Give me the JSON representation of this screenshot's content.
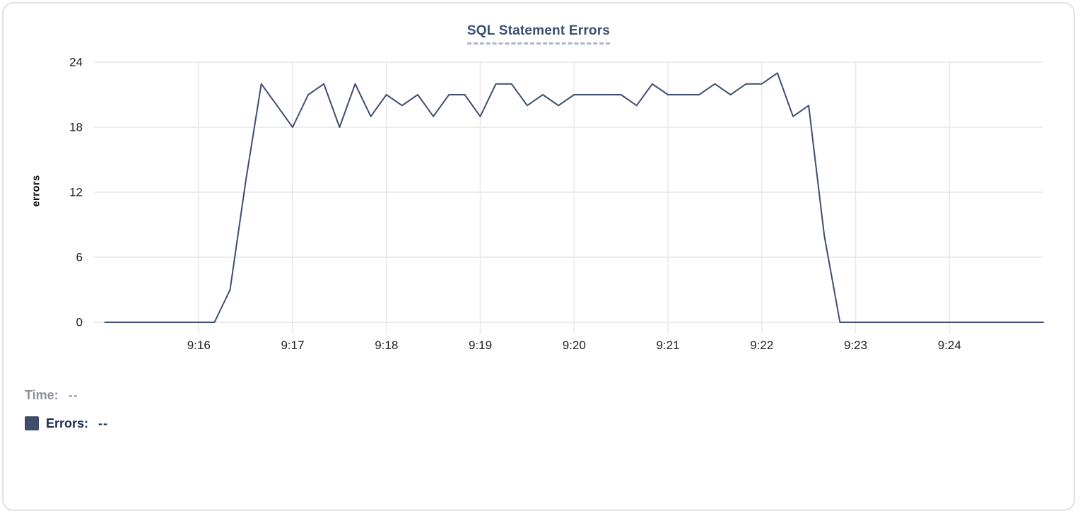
{
  "chart_data": {
    "type": "line",
    "title": "SQL Statement Errors",
    "xlabel": "",
    "ylabel": "errors",
    "ylim": [
      0,
      24
    ],
    "yticks": [
      0,
      6,
      12,
      18,
      24
    ],
    "xticks": [
      "9:16",
      "9:17",
      "9:18",
      "9:19",
      "9:20",
      "9:21",
      "9:22",
      "9:23",
      "9:24"
    ],
    "x_domain": [
      "9:14:53",
      "9:25:00"
    ],
    "grid": true,
    "legend_position": "bottom-left",
    "series": [
      {
        "name": "Errors",
        "points": [
          [
            "9:15:00",
            0
          ],
          [
            "9:15:10",
            0
          ],
          [
            "9:15:20",
            0
          ],
          [
            "9:15:30",
            0
          ],
          [
            "9:15:40",
            0
          ],
          [
            "9:15:50",
            0
          ],
          [
            "9:16:00",
            0
          ],
          [
            "9:16:10",
            0
          ],
          [
            "9:16:20",
            3
          ],
          [
            "9:16:30",
            13
          ],
          [
            "9:16:40",
            22
          ],
          [
            "9:16:50",
            20
          ],
          [
            "9:17:00",
            18
          ],
          [
            "9:17:10",
            21
          ],
          [
            "9:17:20",
            22
          ],
          [
            "9:17:30",
            18
          ],
          [
            "9:17:40",
            22
          ],
          [
            "9:17:50",
            19
          ],
          [
            "9:18:00",
            21
          ],
          [
            "9:18:10",
            20
          ],
          [
            "9:18:20",
            21
          ],
          [
            "9:18:30",
            19
          ],
          [
            "9:18:40",
            21
          ],
          [
            "9:18:50",
            21
          ],
          [
            "9:19:00",
            19
          ],
          [
            "9:19:10",
            22
          ],
          [
            "9:19:20",
            22
          ],
          [
            "9:19:30",
            20
          ],
          [
            "9:19:40",
            21
          ],
          [
            "9:19:50",
            20
          ],
          [
            "9:20:00",
            21
          ],
          [
            "9:20:10",
            21
          ],
          [
            "9:20:20",
            21
          ],
          [
            "9:20:30",
            21
          ],
          [
            "9:20:40",
            20
          ],
          [
            "9:20:50",
            22
          ],
          [
            "9:21:00",
            21
          ],
          [
            "9:21:10",
            21
          ],
          [
            "9:21:20",
            21
          ],
          [
            "9:21:30",
            22
          ],
          [
            "9:21:40",
            21
          ],
          [
            "9:21:50",
            22
          ],
          [
            "9:22:00",
            22
          ],
          [
            "9:22:10",
            23
          ],
          [
            "9:22:20",
            19
          ],
          [
            "9:22:30",
            20
          ],
          [
            "9:22:40",
            8
          ],
          [
            "9:22:50",
            0
          ],
          [
            "9:23:00",
            0
          ],
          [
            "9:23:10",
            0
          ],
          [
            "9:23:20",
            0
          ],
          [
            "9:23:30",
            0
          ],
          [
            "9:23:40",
            0
          ],
          [
            "9:23:50",
            0
          ],
          [
            "9:24:00",
            0
          ],
          [
            "9:24:10",
            0
          ],
          [
            "9:24:20",
            0
          ],
          [
            "9:24:30",
            0
          ],
          [
            "9:24:40",
            0
          ],
          [
            "9:24:50",
            0
          ],
          [
            "9:25:00",
            0
          ]
        ]
      }
    ]
  },
  "legend": {
    "time_label": "Time:",
    "time_value": "--",
    "errors_label": "Errors:",
    "errors_value": "--"
  },
  "colors": {
    "line": "#3e4d6e",
    "grid": "#e9e9e9",
    "title": "#3a4e70",
    "underline": "#a9b7cd",
    "axis": "#1f1f1f",
    "tlabel": "#8c9199",
    "tvalue": "#999fa7",
    "elabel": "#192a52",
    "evalue": "#23355c",
    "swatch": "#3f4d6b",
    "card-border": "#e1e1e3"
  }
}
